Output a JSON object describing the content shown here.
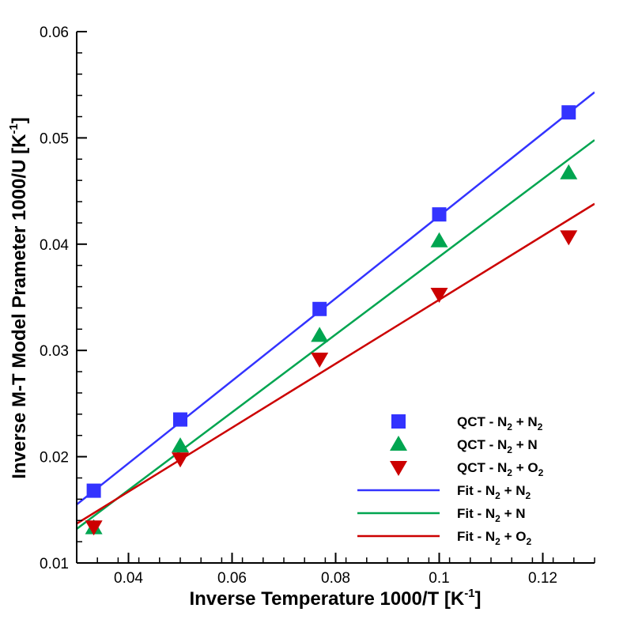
{
  "chart_data": {
    "type": "scatter",
    "title": "",
    "xlabel": "Inverse Temperature 1000/T [K",
    "xlabel_sup": "-1",
    "xlabel_end": "]",
    "ylabel": "Inverse M-T Model Prameter 1000/U [K",
    "ylabel_sup": "-1",
    "ylabel_end": "]",
    "xlim": [
      0.03,
      0.13
    ],
    "ylim": [
      0.01,
      0.06
    ],
    "xticks": [
      0.04,
      0.06,
      0.08,
      0.1,
      0.12
    ],
    "xtick_labels": [
      "0.04",
      "0.06",
      "0.08",
      "0.1",
      "0.12"
    ],
    "yticks": [
      0.01,
      0.02,
      0.03,
      0.04,
      0.05,
      0.06
    ],
    "ytick_labels": [
      "0.01",
      "0.02",
      "0.03",
      "0.04",
      "0.05",
      "0.06"
    ],
    "grid": false,
    "legend_position": "bottom-right",
    "series": [
      {
        "name": "QCT - N2 + N2",
        "label_parts": [
          "QCT - N",
          "2",
          " + N",
          "2"
        ],
        "kind": "marker",
        "marker": "square",
        "color": "#3333ff",
        "x": [
          0.0333,
          0.05,
          0.0769,
          0.1,
          0.125
        ],
        "y": [
          0.0168,
          0.0235,
          0.0339,
          0.0428,
          0.0524
        ]
      },
      {
        "name": "QCT - N2 + N",
        "label_parts": [
          "QCT - N",
          "2",
          " + N",
          ""
        ],
        "kind": "marker",
        "marker": "triangle-up",
        "color": "#00a550",
        "x": [
          0.0333,
          0.05,
          0.0769,
          0.1,
          0.125
        ],
        "y": [
          0.0133,
          0.021,
          0.0314,
          0.0403,
          0.0467
        ]
      },
      {
        "name": "QCT - N2 + O2",
        "label_parts": [
          "QCT - N",
          "2",
          " + O",
          "2"
        ],
        "kind": "marker",
        "marker": "triangle-down",
        "color": "#cc0000",
        "x": [
          0.0333,
          0.05,
          0.0769,
          0.1,
          0.125
        ],
        "y": [
          0.0134,
          0.0198,
          0.0292,
          0.0353,
          0.0407
        ]
      },
      {
        "name": "Fit - N2 + N2",
        "label_parts": [
          "Fit - N",
          "2",
          " + N",
          "2"
        ],
        "kind": "line",
        "color": "#3333ff",
        "x": [
          0.03,
          0.13
        ],
        "y": [
          0.0155,
          0.0543
        ]
      },
      {
        "name": "Fit - N2 + N",
        "label_parts": [
          "Fit - N",
          "2",
          " + N",
          ""
        ],
        "kind": "line",
        "color": "#00a550",
        "x": [
          0.03,
          0.13
        ],
        "y": [
          0.0132,
          0.0498
        ]
      },
      {
        "name": "Fit - N2 + O2",
        "label_parts": [
          "Fit - N",
          "2",
          " + O",
          "2"
        ],
        "kind": "line",
        "color": "#cc0000",
        "x": [
          0.03,
          0.13
        ],
        "y": [
          0.0137,
          0.0438
        ]
      }
    ]
  }
}
